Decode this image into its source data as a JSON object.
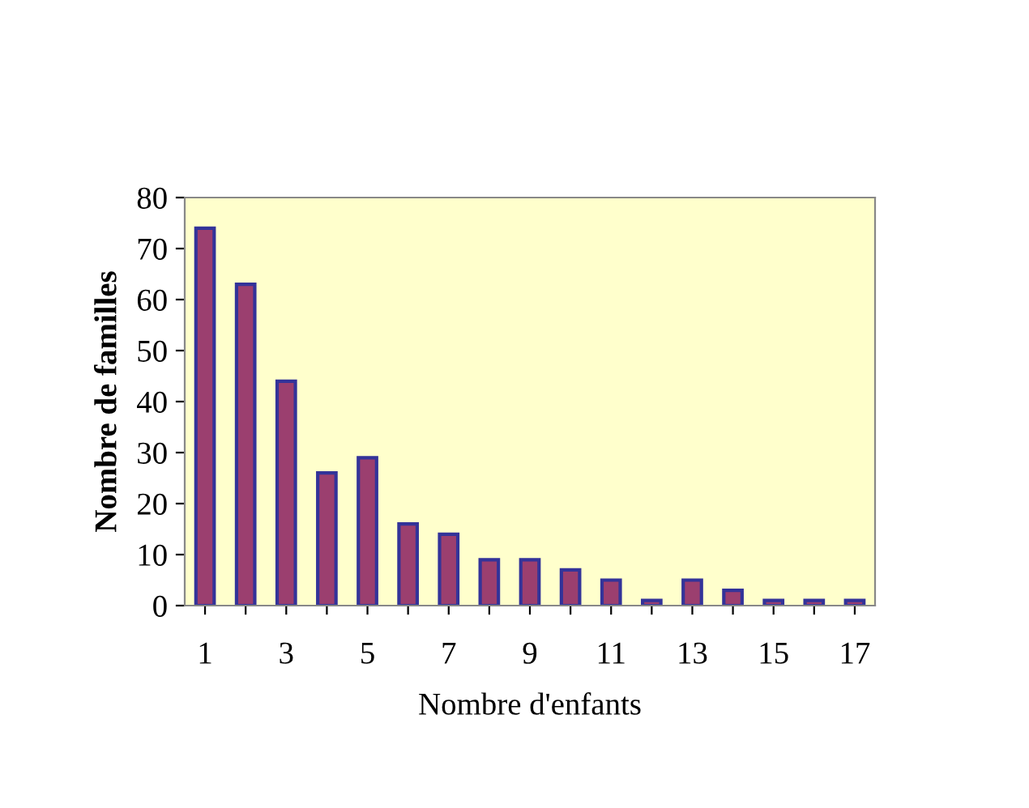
{
  "chart_data": {
    "type": "bar",
    "xlabel": "Nombre d'enfants",
    "ylabel": "Nombre de familles",
    "categories": [
      "1",
      null,
      "3",
      null,
      "5",
      null,
      "7",
      null,
      "9",
      null,
      "11",
      null,
      "13",
      null,
      "15",
      null,
      "17"
    ],
    "values": [
      74,
      63,
      44,
      26,
      29,
      16,
      14,
      9,
      9,
      7,
      5,
      1,
      5,
      3,
      1,
      1,
      1
    ],
    "color": "#9b3f6f",
    "ylim": [
      0,
      80
    ],
    "yticks": [
      0,
      10,
      20,
      30,
      40,
      50,
      60,
      70,
      80
    ],
    "grid": false
  }
}
